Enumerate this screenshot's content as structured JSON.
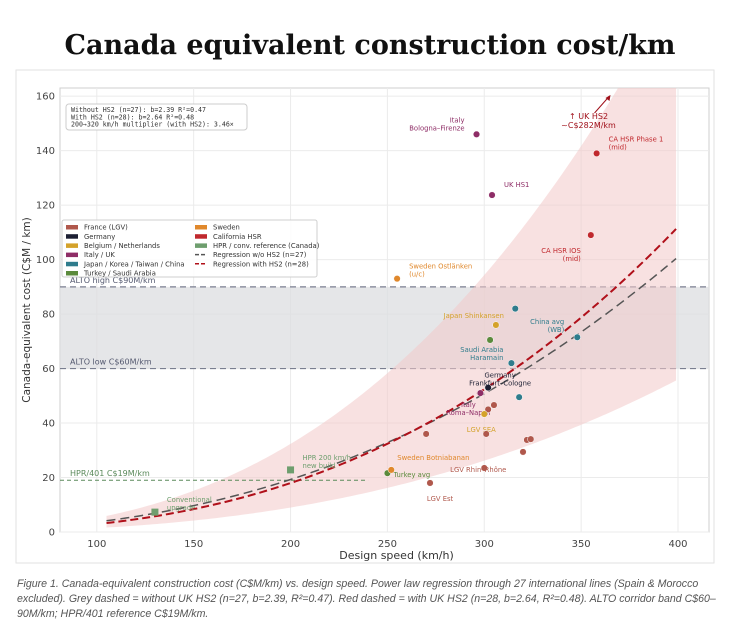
{
  "title": "Canada equivalent construction cost/km",
  "caption": "Figure 1. Canada-equivalent construction cost (C$M/km) vs. design speed. Power law regression through 27 international lines (Spain & Morocco excluded). Grey dashed = without UK HS2 (n=27, b=2.39, R²=0.47). Red dashed = with UK HS2 (n=28, b=2.64, R²=0.48). ALTO corridor band C$60–90M/km; HPR/401 reference C$19M/km.",
  "chart_data": {
    "type": "scatter",
    "xlabel": "Design speed (km/h)",
    "ylabel": "Canada-equivalent cost (C$M / km)",
    "xlim": [
      81,
      416
    ],
    "ylim": [
      0,
      163
    ],
    "xticks": [
      100,
      150,
      200,
      250,
      300,
      350,
      400
    ],
    "yticks": [
      0,
      20,
      40,
      60,
      80,
      100,
      120,
      140,
      160
    ],
    "grid": true,
    "stats_box": [
      "Without HS2 (n=27):  b=2.39  R²=0.47",
      "With HS2    (n=28):  b=2.64  R²=0.48",
      "200→320 km/h multiplier (with HS2): 3.46×"
    ],
    "legend_position": "upper-left",
    "legend": [
      {
        "label": "France (LGV)",
        "color": "#b0584c",
        "kind": "patch"
      },
      {
        "label": "Germany",
        "color": "#1c1f33",
        "kind": "patch"
      },
      {
        "label": "Belgium / Netherlands",
        "color": "#d4a22a",
        "kind": "patch"
      },
      {
        "label": "Italy / UK",
        "color": "#8e2d66",
        "kind": "patch"
      },
      {
        "label": "Japan / Korea / Taiwan / China",
        "color": "#2f7c8c",
        "kind": "patch"
      },
      {
        "label": "Turkey / Saudi Arabia",
        "color": "#5b8a3c",
        "kind": "patch"
      },
      {
        "label": "Sweden",
        "color": "#e0882c",
        "kind": "patch"
      },
      {
        "label": "California HSR",
        "color": "#c0282d",
        "kind": "patch"
      },
      {
        "label": "HPR / conv. reference (Canada)",
        "color": "#6e9e6e",
        "kind": "patch"
      },
      {
        "label": "Regression w/o HS2 (n=27)",
        "color": "#555555",
        "kind": "dash"
      },
      {
        "label": "Regression with HS2 (n=28)",
        "color": "#b0101a",
        "kind": "dash"
      }
    ],
    "bands": [
      {
        "from": 60,
        "to": 90,
        "color": "#dcdde0",
        "labels": [
          "ALTO low  C$60M/km",
          "ALTO high  C$90M/km"
        ]
      }
    ],
    "reference_line": {
      "y": 19,
      "x_to": 240,
      "label": "HPR/401  C$19M/km",
      "color": "#5b8a5b"
    },
    "regressions": [
      {
        "name": "Regression w/o HS2 (n=27)",
        "b": 2.39,
        "y_at_400": 101,
        "x_range": [
          105,
          400
        ],
        "color": "#555555"
      },
      {
        "name": "Regression with HS2 (n=28)",
        "b": 2.64,
        "y_at_400": 112,
        "x_range": [
          105,
          400
        ],
        "color": "#b0101a"
      }
    ],
    "confidence_band": {
      "upper_factor": 1.8,
      "lower_factor": 0.5,
      "color": "#f2c9c9"
    },
    "offscale_annotation": {
      "text": [
        "↑ UK HS2",
        "~C$282M/km"
      ],
      "x": 360,
      "color": "#a0101a"
    },
    "points": [
      {
        "x": 296,
        "y": 146,
        "group": "Italy / UK",
        "label": [
          "Italy",
          "Bologna–Firenze"
        ]
      },
      {
        "x": 304,
        "y": 123.7,
        "group": "Italy / UK",
        "label": [
          "UK HS1"
        ]
      },
      {
        "x": 358,
        "y": 139,
        "group": "California HSR",
        "label": [
          "CA HSR Phase 1",
          "(mid)"
        ]
      },
      {
        "x": 355,
        "y": 109,
        "group": "California HSR",
        "label": [
          "CA HSR IOS",
          "(mid)"
        ]
      },
      {
        "x": 255,
        "y": 93,
        "group": "Sweden",
        "label": [
          "Sweden Ostlänken",
          "(u/c)"
        ]
      },
      {
        "x": 316,
        "y": 82,
        "group": "Japan / Korea / Taiwan / China",
        "label": []
      },
      {
        "x": 306,
        "y": 76,
        "group": "Belgium / Netherlands",
        "label": [
          "Japan Shinkansen"
        ]
      },
      {
        "x": 303,
        "y": 70.5,
        "group": "Turkey / Saudi Arabia",
        "label": []
      },
      {
        "x": 314,
        "y": 62,
        "group": "Japan / Korea / Taiwan / China",
        "label": [
          "Saudi Arabia",
          "Haramain"
        ]
      },
      {
        "x": 348,
        "y": 71.5,
        "group": "Japan / Korea / Taiwan / China",
        "label": [
          "China avg",
          "(WB)"
        ]
      },
      {
        "x": 302,
        "y": 53,
        "group": "Germany",
        "label": [
          "Germany",
          "Frankfurt–Cologne"
        ]
      },
      {
        "x": 298,
        "y": 51,
        "group": "Italy / UK",
        "label": [
          "Italy",
          "Roma–Napoli"
        ]
      },
      {
        "x": 318,
        "y": 49.5,
        "group": "Japan / Korea / Taiwan / China",
        "label": []
      },
      {
        "x": 305,
        "y": 46.6,
        "group": "France (LGV)",
        "label": []
      },
      {
        "x": 302,
        "y": 45,
        "group": "France (LGV)",
        "label": []
      },
      {
        "x": 300,
        "y": 43.3,
        "group": "Belgium / Netherlands",
        "label": [
          "LGV SEA"
        ]
      },
      {
        "x": 270,
        "y": 36,
        "group": "France (LGV)",
        "label": []
      },
      {
        "x": 301,
        "y": 36,
        "group": "France (LGV)",
        "label": []
      },
      {
        "x": 322,
        "y": 33.8,
        "group": "France (LGV)",
        "label": []
      },
      {
        "x": 324,
        "y": 34.1,
        "group": "France (LGV)",
        "label": []
      },
      {
        "x": 320,
        "y": 29.4,
        "group": "France (LGV)",
        "label": []
      },
      {
        "x": 300,
        "y": 23.5,
        "group": "France (LGV)",
        "label": [
          "LGV Rhin–Rhône"
        ]
      },
      {
        "x": 272,
        "y": 18,
        "group": "France (LGV)",
        "label": [
          "LGV Est"
        ]
      },
      {
        "x": 250,
        "y": 21.6,
        "group": "Turkey / Saudi Arabia",
        "label": [
          "Turkey avg"
        ]
      },
      {
        "x": 252,
        "y": 22.8,
        "group": "Sweden",
        "label": [
          "Sweden Botniabanan"
        ]
      },
      {
        "x": 200,
        "y": 22.8,
        "group": "HPR / conv. reference (Canada)",
        "marker": "square",
        "label": [
          "HPR 200 km/h",
          "new build"
        ]
      },
      {
        "x": 130,
        "y": 7.3,
        "group": "HPR / conv. reference (Canada)",
        "marker": "square",
        "label": [
          "Conventional",
          "upgrade"
        ]
      }
    ]
  }
}
